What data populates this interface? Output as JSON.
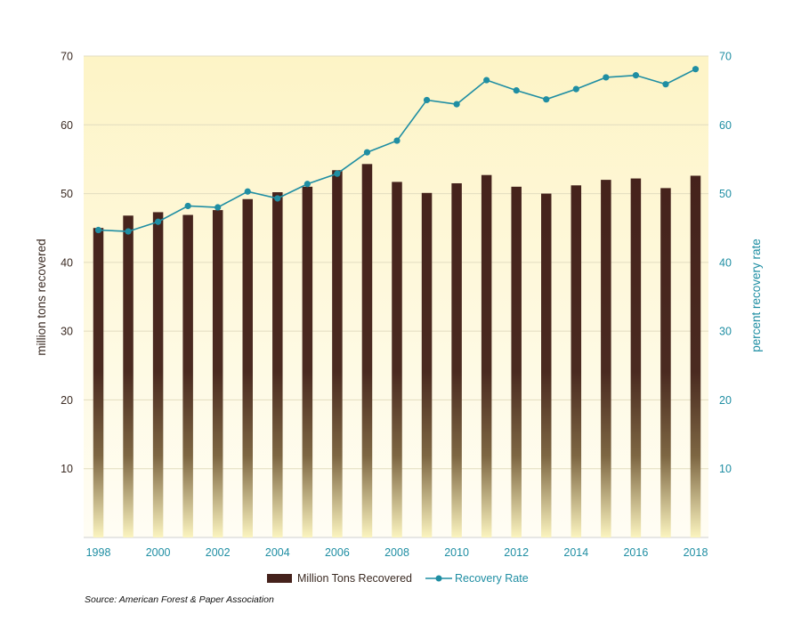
{
  "chart_data": {
    "type": "bar+line",
    "title": "",
    "years": [
      "1998",
      "1999",
      "2000",
      "2001",
      "2002",
      "2003",
      "2004",
      "2005",
      "2006",
      "2007",
      "2008",
      "2009",
      "2010",
      "2011",
      "2012",
      "2013",
      "2014",
      "2015",
      "2016",
      "2017",
      "2018"
    ],
    "x_tick_labels": [
      "1998",
      "2000",
      "2002",
      "2004",
      "2006",
      "2008",
      "2010",
      "2012",
      "2014",
      "2016",
      "2018"
    ],
    "series": [
      {
        "name": "Million Tons Recovered",
        "kind": "bar",
        "axis": "left",
        "color": "#45221c",
        "values": [
          45.0,
          46.8,
          47.3,
          46.9,
          47.6,
          49.2,
          50.2,
          51.0,
          53.4,
          54.3,
          51.7,
          50.1,
          51.5,
          52.7,
          51.0,
          50.0,
          51.2,
          52.0,
          52.2,
          50.8,
          52.6
        ]
      },
      {
        "name": "Recovery Rate",
        "kind": "line",
        "axis": "right",
        "color": "#1f8ea3",
        "values": [
          44.7,
          44.5,
          45.9,
          48.2,
          48.0,
          50.3,
          49.3,
          51.4,
          52.9,
          56.0,
          57.7,
          63.6,
          63.0,
          66.5,
          65.0,
          63.7,
          65.2,
          66.9,
          67.2,
          65.9,
          68.1
        ]
      }
    ],
    "ylabel_left": "million tons recovered",
    "ylabel_right": "percent recovery rate",
    "ylim_left": [
      0,
      70
    ],
    "ylim_right": [
      0,
      70
    ],
    "yticks_left": [
      "10",
      "20",
      "30",
      "40",
      "50",
      "60",
      "70"
    ],
    "yticks_right": [
      "10",
      "20",
      "30",
      "40",
      "50",
      "60",
      "70"
    ],
    "grid": true,
    "legend_position": "bottom-center",
    "source": "Source: American Forest & Paper Association"
  },
  "colors": {
    "bar": "#45221c",
    "line": "#1f8ea3",
    "background_top": "#fdf6cf",
    "background_bottom": "#fffdf3"
  }
}
